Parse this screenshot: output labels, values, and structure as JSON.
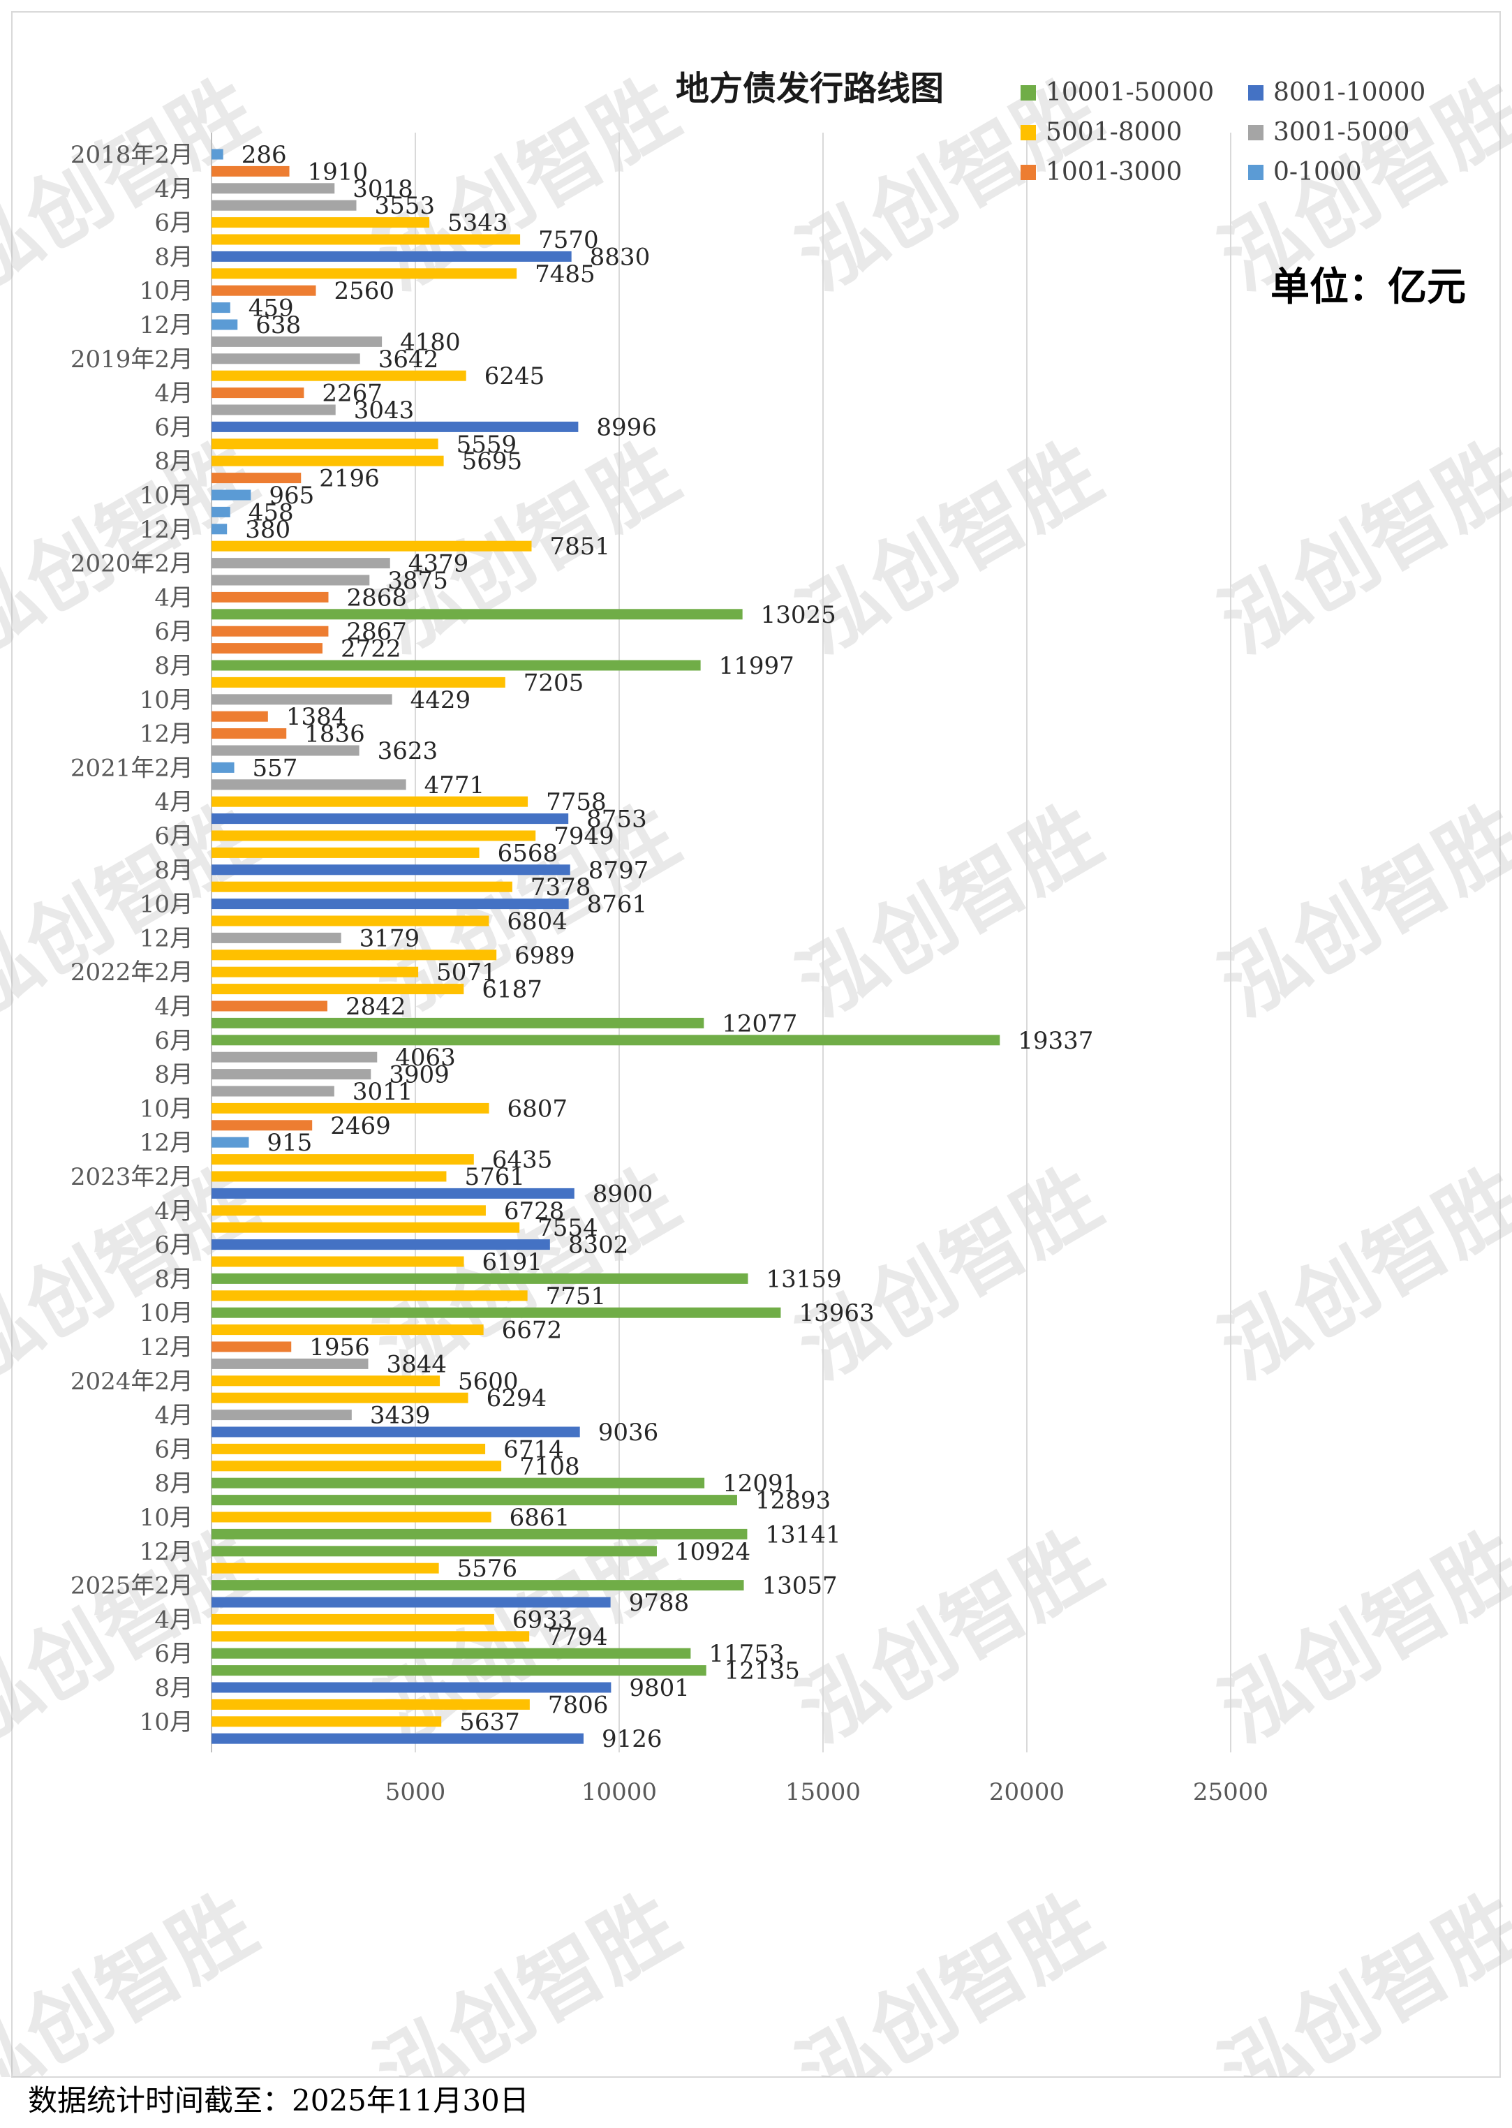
{
  "title": "地方债发行路线图",
  "unit_label": "单位：亿元",
  "footer": "数据统计时间截至：2025年11月30日",
  "watermark": "泓创智胜",
  "chart_data": {
    "type": "bar",
    "orientation": "horizontal",
    "title": "地方债发行路线图",
    "xlim": [
      0,
      30000
    ],
    "x_ticks": [
      5000,
      10000,
      15000,
      20000,
      25000
    ],
    "y_ticks": [
      "2018年2月",
      "4月",
      "6月",
      "8月",
      "10月",
      "12月",
      "2019年2月",
      "4月",
      "6月",
      "8月",
      "10月",
      "12月",
      "2020年2月",
      "4月",
      "6月",
      "8月",
      "10月",
      "12月",
      "2021年2月",
      "4月",
      "6月",
      "8月",
      "10月",
      "12月",
      "2022年2月",
      "4月",
      "6月",
      "8月",
      "10月",
      "12月",
      "2023年2月",
      "4月",
      "6月",
      "8月",
      "10月",
      "12月",
      "2024年2月",
      "4月",
      "6月",
      "8月",
      "10月",
      "12月",
      "2025年2月",
      "4月",
      "6月",
      "8月",
      "10月"
    ],
    "values": [
      286,
      1910,
      3018,
      3553,
      5343,
      7570,
      8830,
      7485,
      2560,
      459,
      638,
      4180,
      3642,
      6245,
      2267,
      3043,
      8996,
      5559,
      5695,
      2196,
      965,
      458,
      380,
      7851,
      4379,
      3875,
      2868,
      13025,
      2867,
      2722,
      11997,
      7205,
      4429,
      1384,
      1836,
      3623,
      557,
      4771,
      7758,
      8753,
      7949,
      6568,
      8797,
      7378,
      8761,
      6804,
      3179,
      6989,
      5071,
      6187,
      2842,
      12077,
      19337,
      4063,
      3909,
      3011,
      6807,
      2469,
      915,
      6435,
      5761,
      8900,
      6728,
      7554,
      8302,
      6191,
      13159,
      7751,
      13963,
      6672,
      1956,
      3844,
      5600,
      6294,
      3439,
      9036,
      6714,
      7108,
      12091,
      12893,
      6861,
      13141,
      10924,
      5576,
      13057,
      9788,
      6933,
      7794,
      11753,
      12135,
      9801,
      7806,
      5637,
      9126
    ],
    "legend": [
      {
        "name": "10001-50000",
        "color": "#70ad47",
        "min": 10001,
        "max": 50000
      },
      {
        "name": "8001-10000",
        "color": "#4472c4",
        "min": 8001,
        "max": 10000
      },
      {
        "name": "5001-8000",
        "color": "#ffc000",
        "min": 5001,
        "max": 8000
      },
      {
        "name": "3001-5000",
        "color": "#a5a5a5",
        "min": 3001,
        "max": 5000
      },
      {
        "name": "1001-3000",
        "color": "#ed7d31",
        "min": 1001,
        "max": 3000
      },
      {
        "name": "0-1000",
        "color": "#5b9bd5",
        "min": 0,
        "max": 1000
      }
    ],
    "grid": true,
    "legend_position": "top-right"
  }
}
